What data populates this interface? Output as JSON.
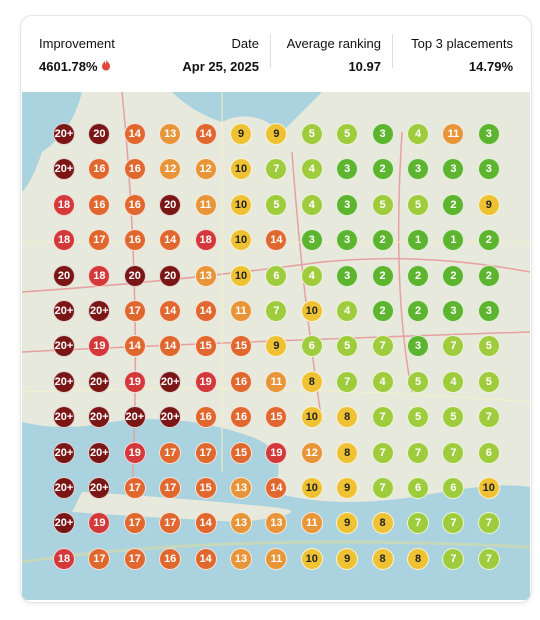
{
  "header": {
    "improvement": {
      "label": "Improvement",
      "value": "4601.78%"
    },
    "date": {
      "label": "Date",
      "value": "Apr 25, 2025"
    },
    "average_ranking": {
      "label": "Average ranking",
      "value": "10.97"
    },
    "top3": {
      "label": "Top 3 placements",
      "value": "14.79%"
    }
  },
  "grid": {
    "rows": [
      [
        "20+",
        "20",
        "14",
        "13",
        "14",
        "9",
        "9",
        "5",
        "5",
        "3",
        "4",
        "11",
        "3"
      ],
      [
        "20+",
        "16",
        "16",
        "12",
        "12",
        "10",
        "7",
        "4",
        "3",
        "2",
        "3",
        "3",
        "3"
      ],
      [
        "18",
        "16",
        "16",
        "20",
        "11",
        "10",
        "5",
        "4",
        "3",
        "5",
        "5",
        "2",
        "9"
      ],
      [
        "18",
        "17",
        "16",
        "14",
        "18",
        "10",
        "14",
        "3",
        "3",
        "2",
        "1",
        "1",
        "2"
      ],
      [
        "20",
        "18",
        "20",
        "20",
        "13",
        "10",
        "6",
        "4",
        "3",
        "2",
        "2",
        "2",
        "2"
      ],
      [
        "20+",
        "20+",
        "17",
        "14",
        "14",
        "11",
        "7",
        "10",
        "4",
        "2",
        "2",
        "3",
        "3"
      ],
      [
        "20+",
        "19",
        "14",
        "14",
        "15",
        "15",
        "9",
        "6",
        "5",
        "7",
        "3",
        "7",
        "5"
      ],
      [
        "20+",
        "20+",
        "19",
        "20+",
        "19",
        "16",
        "11",
        "8",
        "7",
        "4",
        "5",
        "4",
        "5"
      ],
      [
        "20+",
        "20+",
        "20+",
        "20+",
        "16",
        "16",
        "15",
        "10",
        "8",
        "7",
        "5",
        "5",
        "7"
      ],
      [
        "20+",
        "20+",
        "19",
        "17",
        "17",
        "15",
        "19",
        "12",
        "8",
        "7",
        "7",
        "7",
        "6"
      ],
      [
        "20+",
        "20+",
        "17",
        "17",
        "15",
        "13",
        "14",
        "10",
        "9",
        "7",
        "6",
        "6",
        "10"
      ],
      [
        "20+",
        "19",
        "17",
        "17",
        "14",
        "13",
        "13",
        "11",
        "9",
        "8",
        "7",
        "7",
        "7"
      ],
      [
        "18",
        "17",
        "17",
        "16",
        "14",
        "13",
        "11",
        "10",
        "9",
        "8",
        "8",
        "7",
        "7"
      ]
    ]
  }
}
